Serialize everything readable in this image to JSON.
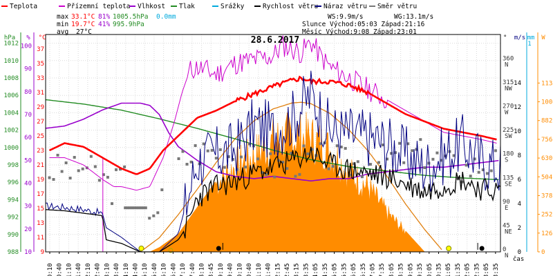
{
  "chart_data": {
    "type": "line",
    "title": "28.6.2017",
    "x_axis_label": "čas",
    "x_ticks": [
      "00:10",
      "00:40",
      "01:10",
      "01:40",
      "02:10",
      "02:40",
      "03:10",
      "03:40",
      "04:10",
      "04:40",
      "05:10",
      "05:40",
      "06:10",
      "06:40",
      "07:10",
      "07:40",
      "08:10",
      "08:45",
      "09:10",
      "09:40",
      "10:10",
      "10:40",
      "11:10",
      "11:40",
      "12:15",
      "12:45",
      "13:15",
      "13:35",
      "14:05",
      "14:35",
      "15:05",
      "15:35",
      "16:05",
      "16:35",
      "17:05",
      "17:35",
      "18:05",
      "18:35",
      "19:05",
      "19:35",
      "20:05",
      "20:35",
      "21:05",
      "21:35",
      "22:05",
      "22:35",
      "23:05",
      "23:35"
    ],
    "axes": {
      "pressure_hPa": {
        "label": "hPa",
        "ticks": [
          "988",
          "990",
          "992",
          "994",
          "996",
          "998",
          "1000",
          "1002",
          "1004",
          "1006",
          "1008",
          "1010",
          "1012"
        ]
      },
      "humidity_pct": {
        "label": "%",
        "ticks": [
          "10",
          "20",
          "30",
          "40",
          "50",
          "60",
          "70",
          "80",
          "90",
          "100"
        ]
      },
      "temperature_C": {
        "label": "°C",
        "ticks": [
          "9",
          "11",
          "13",
          "15",
          "17",
          "19",
          "21",
          "23",
          "25",
          "27",
          "29",
          "31",
          "33",
          "35",
          "37"
        ]
      },
      "wind_direction": {
        "label": "°",
        "ticks": [
          "0 N",
          "45 NE",
          "90 E",
          "135 SE",
          "180 S",
          "225 SW",
          "270 W",
          "315 NW",
          "360 N"
        ]
      },
      "wind_speed_ms": {
        "label": "m/s",
        "ticks": [
          "0",
          "2",
          "4",
          "6",
          "8",
          "10",
          "12",
          "14"
        ]
      },
      "rain_mm": {
        "label": "mm",
        "ticks": [
          "0",
          "1"
        ]
      },
      "radiation_W": {
        "label": "W",
        "ticks": [
          "0",
          "126",
          "252",
          "378",
          "504",
          "630",
          "756",
          "882",
          "1008",
          "1134"
        ]
      }
    },
    "legend": [
      {
        "name": "Teplota",
        "color": "#ff0000"
      },
      {
        "name": "Přízemní teplota",
        "color": "#cc00cc"
      },
      {
        "name": "Vlhkost",
        "color": "#9900cc"
      },
      {
        "name": "Tlak",
        "color": "#228b22"
      },
      {
        "name": "Srážky",
        "color": "#00aadd"
      },
      {
        "name": "Rychlost větru",
        "color": "#000000"
      },
      {
        "name": "Náraz větru",
        "color": "#000080"
      },
      {
        "name": "Směr větru",
        "color": "#777777"
      }
    ],
    "stats": {
      "max_label": "max",
      "max_temp": "33.1°C",
      "max_hum": "81%",
      "max_press": "1005.5hPa",
      "max_rain": "0.0mm",
      "min_label": "min",
      "min_temp": "19.7°C",
      "min_hum": "41%",
      "min_press": "995.9hPa",
      "avg_label": "avg",
      "avg_temp": "27°C",
      "ws": "WS:9.9m/s",
      "wg": "WG:13.1m/s",
      "sun": "Slunce Východ:05:03  Západ:21:16",
      "moon": "Měsíc  Východ:9:08  Západ:23:01"
    },
    "series": {
      "temperature": {
        "t_hours": [
          0.2,
          1,
          2,
          3,
          4,
          4.8,
          5.5,
          6.2,
          7,
          8,
          9,
          10,
          11,
          12,
          12.8,
          13.5,
          14,
          15,
          16,
          17,
          18,
          19,
          20,
          21,
          22,
          23,
          23.8
        ],
        "values": [
          23,
          24,
          23.5,
          22,
          20.5,
          19.7,
          20.5,
          23,
          25,
          27.5,
          28.5,
          29.8,
          30.8,
          31.8,
          32.5,
          33,
          32.5,
          32.5,
          32,
          31,
          29.5,
          28,
          27,
          26,
          25.5,
          25,
          24.5
        ]
      },
      "ground_temperature": {
        "t_hours": [
          0.2,
          1,
          2,
          3,
          3.6,
          4,
          4.8,
          5.5,
          6.2,
          6.8,
          7.2,
          7.6,
          8,
          9,
          10,
          11,
          12,
          12.5,
          13,
          13.5,
          14,
          14.5,
          15,
          16,
          17,
          18,
          19,
          20,
          21,
          22,
          23,
          23.8
        ],
        "values": [
          22,
          22,
          21,
          19,
          18,
          18,
          17.5,
          18,
          22,
          27,
          31,
          34,
          34.5,
          33.5,
          35,
          35.5,
          36,
          37.5,
          37,
          36.5,
          38,
          36,
          34.5,
          33,
          31.5,
          30,
          28.5,
          27,
          25.5,
          25,
          24.5,
          24
        ]
      },
      "humidity": {
        "t_hours": [
          0,
          1,
          2,
          3,
          4,
          5,
          5.5,
          6,
          6.5,
          7,
          8,
          9,
          10,
          11,
          12,
          13,
          14,
          15,
          16,
          17,
          18,
          19,
          20,
          21,
          22,
          23,
          24
        ],
        "values": [
          64,
          65,
          68,
          72,
          75,
          75,
          74,
          70,
          62,
          56,
          50,
          45,
          43,
          42,
          43,
          42,
          41,
          42,
          42,
          44,
          45,
          46,
          47,
          47,
          48,
          49,
          50
        ]
      },
      "pressure": {
        "t_hours": [
          0,
          2,
          4,
          6,
          8,
          10,
          12,
          14,
          16,
          18,
          20,
          22,
          24
        ],
        "values": [
          1005.5,
          1005,
          1004.3,
          1003.3,
          1002.2,
          1001,
          999.7,
          998.6,
          997.8,
          997.3,
          996.8,
          996.5,
          996.3
        ]
      },
      "wind_speed": {
        "t_hours": [
          0,
          1,
          2,
          3,
          3.2,
          4,
          5,
          6,
          7,
          7.5,
          8,
          9,
          10,
          11,
          12,
          13,
          14,
          15,
          16,
          17,
          18,
          19,
          20,
          21,
          22,
          23,
          24
        ],
        "values": [
          3.5,
          3.4,
          3.2,
          3.0,
          1.0,
          0.7,
          0,
          0,
          1.0,
          2.2,
          4.5,
          5.4,
          5.8,
          6.5,
          7.0,
          7.5,
          8.2,
          7.2,
          6.8,
          6.5,
          6.2,
          5.6,
          5.0,
          5.5,
          6.0,
          5.2,
          5.0
        ]
      },
      "wind_gust": {
        "t_hours": [
          0,
          1,
          2,
          3,
          3.2,
          4,
          5,
          6,
          7,
          7.5,
          8,
          9,
          10,
          11,
          12,
          13,
          14,
          15,
          16,
          17,
          18,
          19,
          20,
          21,
          22,
          23,
          24
        ],
        "values": [
          3.8,
          3.7,
          3.5,
          3.2,
          2.0,
          1.2,
          0,
          0,
          1.5,
          4.5,
          7.5,
          8.0,
          8.5,
          10.5,
          10.0,
          11.0,
          13.1,
          10.0,
          9.8,
          9.5,
          9.0,
          8.0,
          7.0,
          8.0,
          9.0,
          7.5,
          7.0
        ]
      },
      "radiation": {
        "t_hours": [
          5.5,
          6,
          7,
          8,
          9,
          10,
          11,
          12,
          13,
          14,
          15,
          16,
          17,
          18,
          19,
          19.5,
          20
        ],
        "values": [
          0,
          30,
          120,
          300,
          480,
          600,
          680,
          780,
          820,
          800,
          720,
          560,
          460,
          280,
          140,
          70,
          0
        ]
      },
      "clear_sky_radiation": {
        "t_hours": [
          5,
          6,
          7,
          8,
          9,
          10,
          11,
          12,
          13,
          13.5,
          14,
          15,
          16,
          17,
          18,
          19,
          20,
          21
        ],
        "values": [
          0,
          95,
          250,
          420,
          600,
          760,
          880,
          960,
          1000,
          1005,
          995,
          930,
          820,
          680,
          510,
          320,
          150,
          0
        ]
      },
      "wind_direction_deg": {
        "t_hours": [
          0.2,
          0.5,
          1,
          1.5,
          2,
          2.5,
          3,
          3.5,
          4,
          5.5,
          6,
          7,
          7.5,
          8,
          9,
          10,
          11,
          12,
          13,
          14,
          15,
          16,
          17,
          18,
          19,
          20,
          21,
          22,
          23,
          23.8
        ],
        "values": [
          150,
          155,
          160,
          150,
          165,
          150,
          140,
          120,
          145,
          83,
          85,
          168,
          175,
          190,
          190,
          185,
          175,
          160,
          170,
          175,
          180,
          165,
          170,
          175,
          185,
          185,
          170,
          155,
          165,
          170
        ]
      }
    },
    "markers": {
      "sun_rise": 5.05,
      "sun_set": 21.27,
      "moon_rise": 9.13,
      "moon_set": 23.02
    }
  }
}
